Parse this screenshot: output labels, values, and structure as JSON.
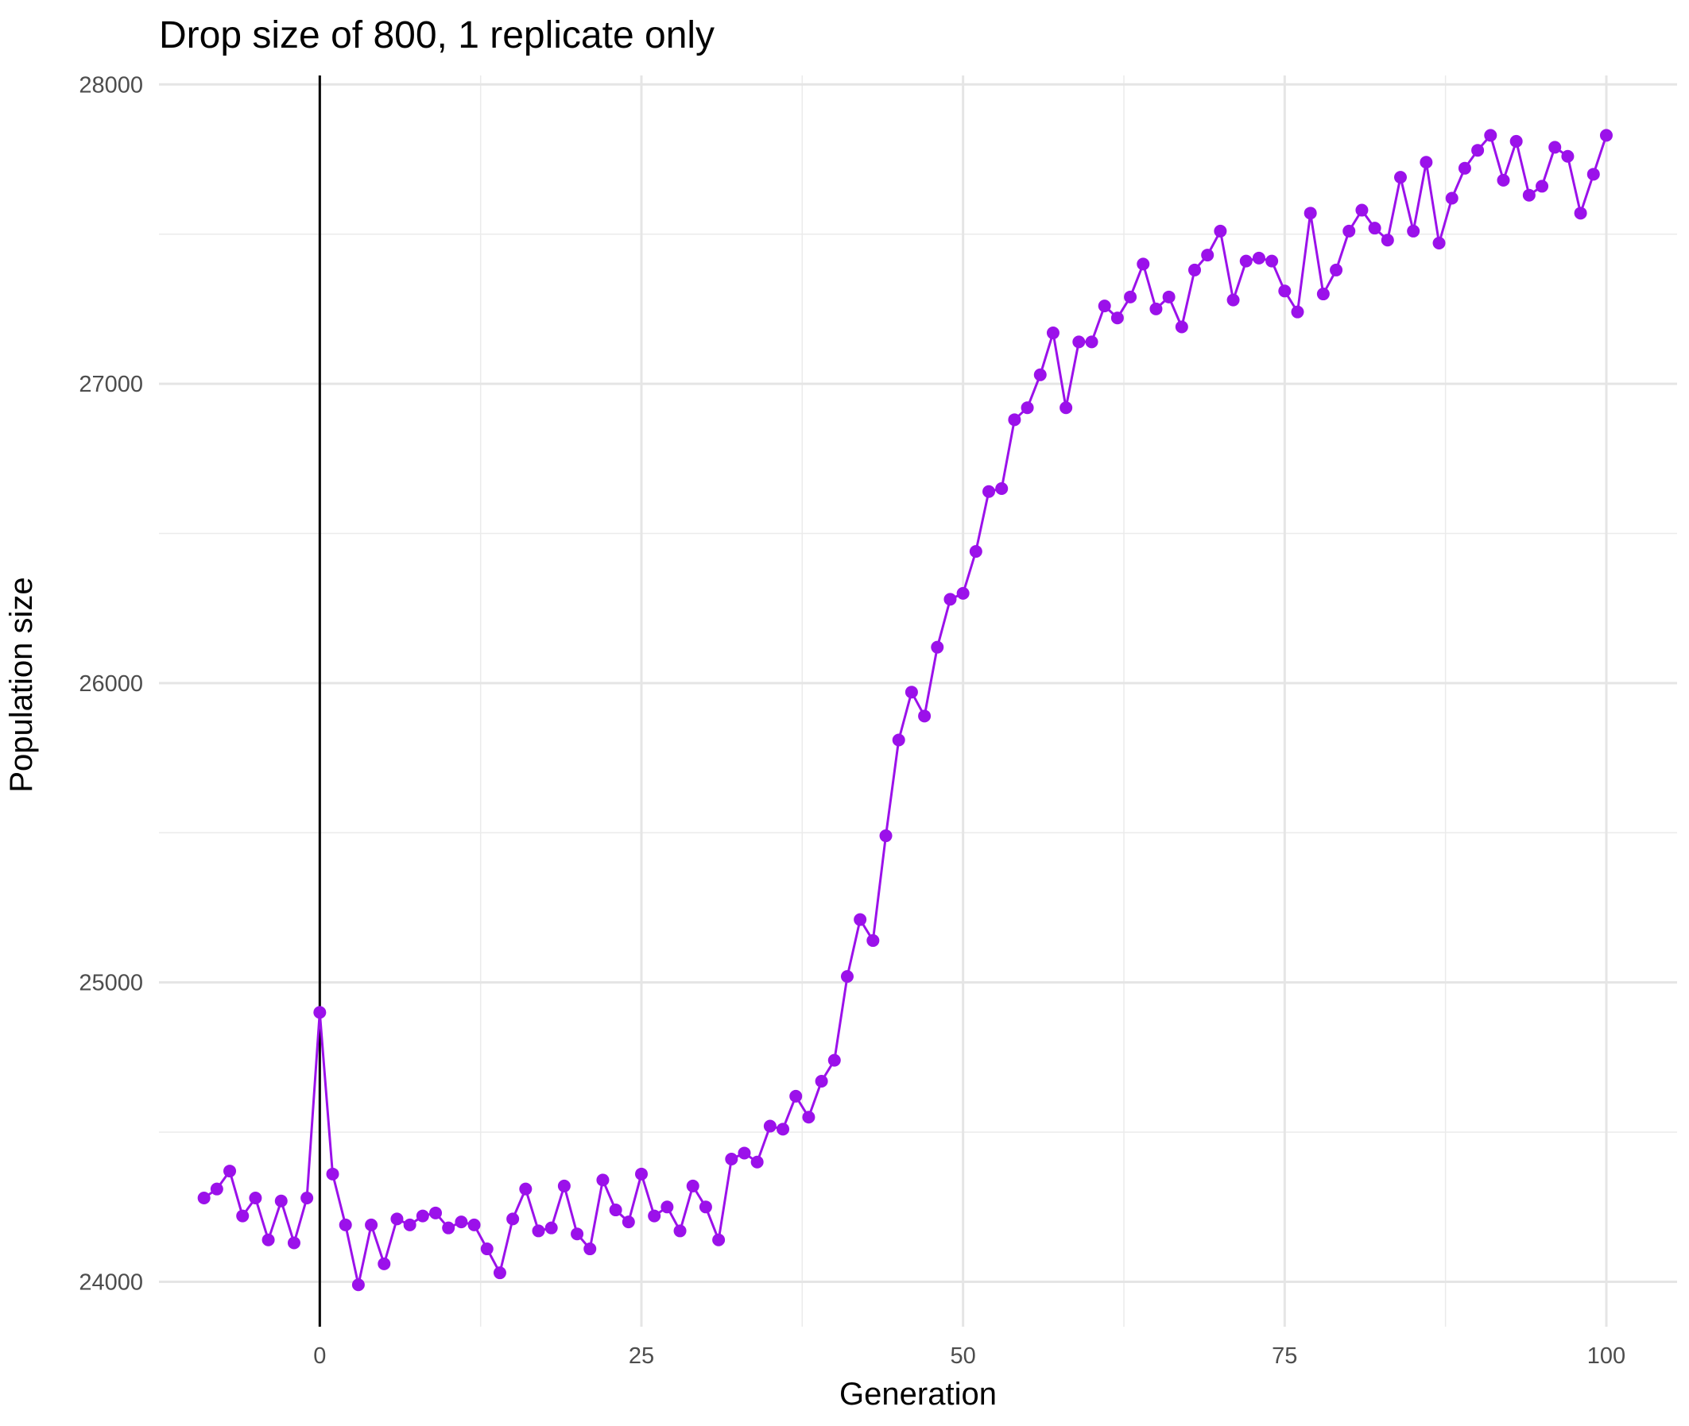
{
  "chart_data": {
    "type": "line",
    "title": "Drop size of 800, 1 replicate only",
    "xlabel": "Generation",
    "ylabel": "Population size",
    "xlim": [
      -12.5,
      105.5
    ],
    "ylim": [
      23850,
      28030
    ],
    "xticks": [
      0,
      25,
      50,
      75,
      100
    ],
    "yticks": [
      24000,
      25000,
      26000,
      27000,
      28000
    ],
    "xtick_labels": [
      "0",
      "25",
      "50",
      "75",
      "100"
    ],
    "ytick_labels": [
      "24000",
      "25000",
      "26000",
      "27000",
      "28000"
    ],
    "grid": true,
    "vline_x": 0,
    "line_color": "#9b11ea",
    "vline_color": "#000000",
    "series": [
      {
        "x": [
          -9,
          -8,
          -7,
          -6,
          -5,
          -4,
          -3,
          -2,
          -1,
          0,
          1,
          2,
          3,
          4,
          5,
          6,
          7,
          8,
          9,
          10,
          11,
          12,
          13,
          14,
          15,
          16,
          17,
          18,
          19,
          20,
          21,
          22,
          23,
          24,
          25,
          26,
          27,
          28,
          29,
          30,
          31,
          32,
          33,
          34,
          35,
          36,
          37,
          38,
          39,
          40,
          41,
          42,
          43,
          44,
          45,
          46,
          47,
          48,
          49,
          50,
          51,
          52,
          53,
          54,
          55,
          56,
          57,
          58,
          59,
          60,
          61,
          62,
          63,
          64,
          65,
          66,
          67,
          68,
          69,
          70,
          71,
          72,
          73,
          74,
          75,
          76,
          77,
          78,
          79,
          80,
          81,
          82,
          83,
          84,
          85,
          86,
          87,
          88,
          89,
          90,
          91,
          92,
          93,
          94,
          95,
          96,
          97,
          98,
          99,
          100
        ],
        "values": [
          24280,
          24310,
          24370,
          24220,
          24280,
          24140,
          24270,
          24130,
          24280,
          24900,
          24360,
          24190,
          23990,
          24190,
          24060,
          24210,
          24190,
          24220,
          24230,
          24180,
          24200,
          24190,
          24110,
          24030,
          24210,
          24310,
          24170,
          24180,
          24320,
          24160,
          24110,
          24340,
          24240,
          24200,
          24360,
          24220,
          24250,
          24170,
          24320,
          24250,
          24140,
          24410,
          24430,
          24400,
          24520,
          24510,
          24620,
          24550,
          24670,
          24740,
          25020,
          25210,
          25140,
          25490,
          25810,
          25970,
          25890,
          26120,
          26280,
          26300,
          26440,
          26640,
          26650,
          26880,
          26920,
          27030,
          27170,
          26920,
          27140,
          27140,
          27260,
          27220,
          27290,
          27400,
          27250,
          27290,
          27190,
          27380,
          27430,
          27510,
          27280,
          27410,
          27420,
          27410,
          27310,
          27240,
          27570,
          27300,
          27380,
          27510,
          27580,
          27520,
          27480,
          27690,
          27510,
          27740,
          27470,
          27620,
          27720,
          27780,
          27830,
          27680,
          27810,
          27630,
          27660,
          27790,
          27760,
          27570,
          27700,
          27830
        ]
      }
    ]
  }
}
